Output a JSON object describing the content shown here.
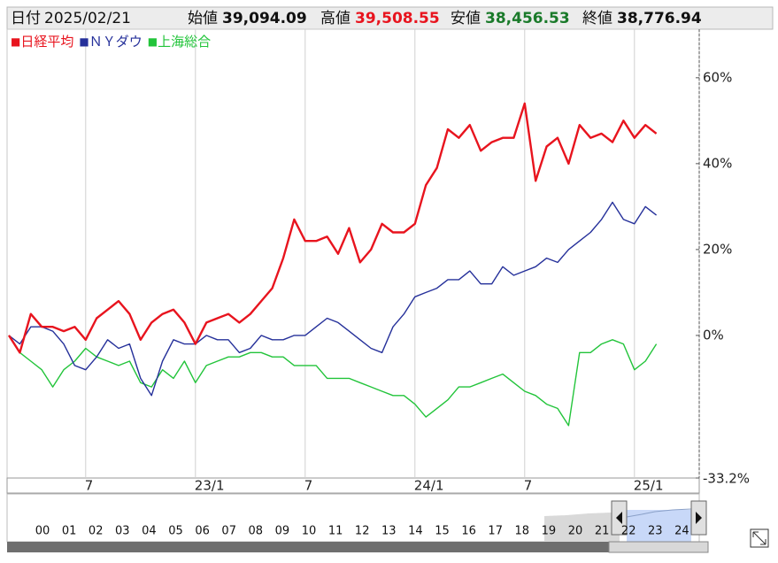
{
  "header": {
    "date_label": "日付",
    "date": "2025/02/21",
    "items": [
      {
        "label": "始値",
        "value": "39,094.09",
        "color": "#111111"
      },
      {
        "label": "高値",
        "value": "39,508.55",
        "color": "#e8141e"
      },
      {
        "label": "安値",
        "value": "38,456.53",
        "color": "#1a7a2a"
      },
      {
        "label": "終値",
        "value": "38,776.94",
        "color": "#111111"
      }
    ]
  },
  "chart_data": {
    "type": "line",
    "categories": [
      null,
      null,
      null,
      null,
      null,
      null,
      null,
      "7",
      null,
      null,
      null,
      null,
      null,
      null,
      null,
      null,
      null,
      "23/1",
      null,
      null,
      null,
      null,
      null,
      null,
      null,
      null,
      null,
      "7",
      null,
      null,
      null,
      null,
      null,
      null,
      null,
      null,
      null,
      "24/1",
      null,
      null,
      null,
      null,
      null,
      null,
      null,
      null,
      null,
      "7",
      null,
      null,
      null,
      null,
      null,
      null,
      null,
      null,
      null,
      "25/1",
      null,
      null
    ],
    "series": [
      {
        "name": "日経平均",
        "color": "#e8141e",
        "values": [
          0,
          -4,
          5,
          2,
          2,
          1,
          2,
          -1,
          4,
          6,
          8,
          5,
          -1,
          3,
          5,
          6,
          3,
          -2,
          3,
          4,
          5,
          3,
          5,
          8,
          11,
          18,
          27,
          22,
          22,
          23,
          19,
          25,
          17,
          20,
          26,
          24,
          24,
          26,
          35,
          39,
          48,
          46,
          49,
          43,
          45,
          46,
          46,
          54,
          36,
          44,
          46,
          40,
          49,
          46,
          47,
          45,
          50,
          46,
          49,
          47
        ]
      },
      {
        "name": "ＮＹダウ",
        "color": "#25309a",
        "values": [
          0,
          -2,
          2,
          2,
          1,
          -2,
          -7,
          -8,
          -5,
          -1,
          -3,
          -2,
          -10,
          -14,
          -6,
          -1,
          -2,
          -2,
          0,
          -1,
          -1,
          -4,
          -3,
          0,
          -1,
          -1,
          0,
          0,
          2,
          4,
          3,
          1,
          -1,
          -3,
          -4,
          2,
          5,
          9,
          10,
          11,
          13,
          13,
          15,
          12,
          12,
          16,
          14,
          15,
          16,
          18,
          17,
          20,
          22,
          24,
          27,
          31,
          27,
          26,
          30,
          28
        ]
      },
      {
        "name": "上海総合",
        "color": "#22c43a",
        "values": [
          0,
          -4,
          -6,
          -8,
          -12,
          -8,
          -6,
          -3,
          -5,
          -6,
          -7,
          -6,
          -11,
          -12,
          -8,
          -10,
          -6,
          -11,
          -7,
          -6,
          -5,
          -5,
          -4,
          -4,
          -5,
          -5,
          -7,
          -7,
          -7,
          -10,
          -10,
          -10,
          -11,
          -12,
          -13,
          -14,
          -14,
          -16,
          -19,
          -17,
          -15,
          -12,
          -12,
          -11,
          -10,
          -9,
          -11,
          -13,
          -14,
          -16,
          -17,
          -21,
          -4,
          -4,
          -2,
          -1,
          -2,
          -8,
          -6,
          -2
        ]
      }
    ],
    "ylim": [
      -33.2,
      71.3
    ],
    "yticks": [
      {
        "value": 60,
        "label": "60%"
      },
      {
        "value": 40,
        "label": "40%"
      },
      {
        "value": 20,
        "label": "20%"
      },
      {
        "value": 0,
        "label": "0%"
      },
      {
        "value": -33.2,
        "label": "-33.2%"
      }
    ],
    "bottom_tick_color": "#e05a3a",
    "x_grid": true,
    "y_grid": false,
    "legend": "top-left"
  },
  "navigator": {
    "years": [
      "00",
      "01",
      "02",
      "03",
      "04",
      "05",
      "06",
      "07",
      "08",
      "09",
      "10",
      "11",
      "12",
      "13",
      "14",
      "15",
      "16",
      "17",
      "18",
      "19",
      "20",
      "21",
      "22",
      "23",
      "24"
    ]
  }
}
